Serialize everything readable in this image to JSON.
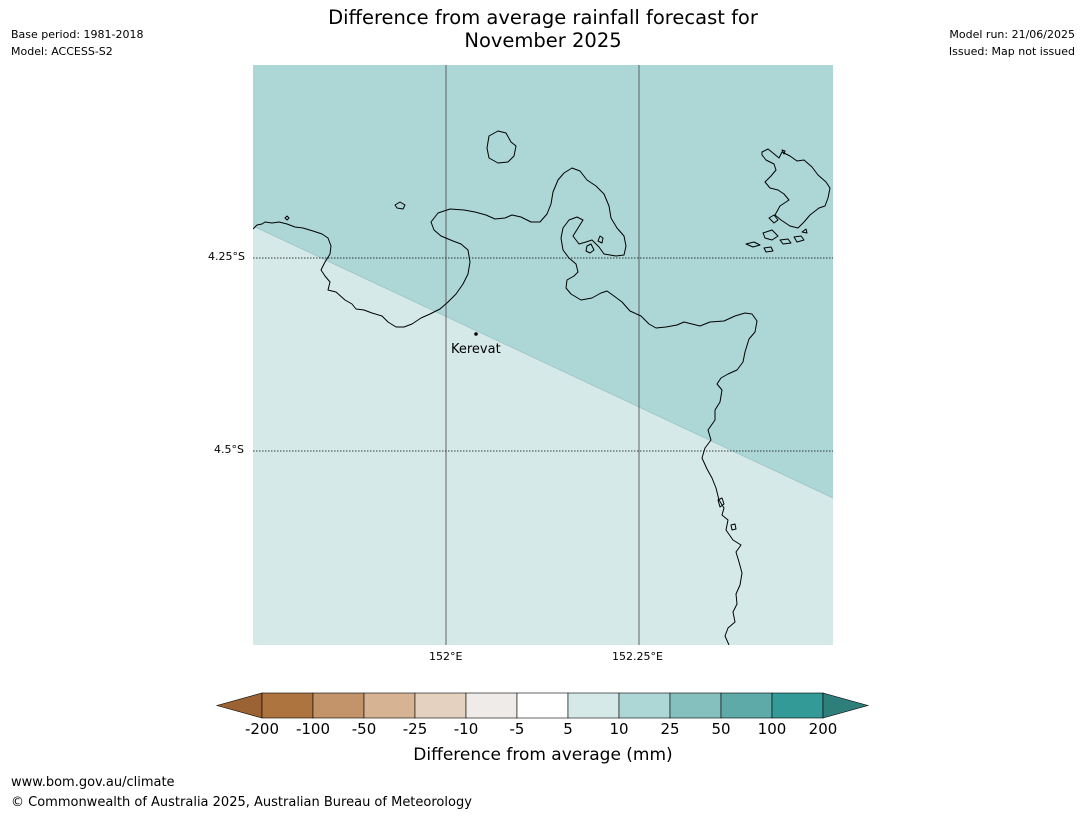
{
  "header": {
    "title_line1": "Difference from average rainfall forecast for",
    "title_line2": "November 2025",
    "base_period": "Base period: 1981-2018",
    "model": "Model: ACCESS-S2",
    "model_run": "Model run: 21/06/2025",
    "issued": "Issued: Map not issued"
  },
  "map": {
    "lat_labels": [
      "4.25°S",
      "4.5°S"
    ],
    "lon_labels": [
      "152°E",
      "152.25°E"
    ],
    "place": {
      "name": "Kerevat"
    },
    "forecast_category_upper": "10 to 25",
    "forecast_category_lower": "5 to 10",
    "colors": {
      "upper_region": "#add6d6",
      "lower_region": "#d6e9e9",
      "coastline": "#000000",
      "grid": "#555555"
    }
  },
  "colorbar": {
    "title": "Difference from average (mm)",
    "labels": [
      "-200",
      "-100",
      "-50",
      "-25",
      "-10",
      "-5",
      "5",
      "10",
      "25",
      "50",
      "100",
      "200"
    ],
    "colors": [
      "#9b6233",
      "#ad743f",
      "#c39469",
      "#d5b393",
      "#e4d1c0",
      "#efebe8",
      "#ffffff",
      "#d6e9e9",
      "#add6d6",
      "#85c0be",
      "#5eaaa9",
      "#339a97",
      "#2e7e7c"
    ]
  },
  "footer": {
    "url": "www.bom.gov.au/climate",
    "copyright": "© Commonwealth of Australia 2025, Australian Bureau of Meteorology"
  }
}
